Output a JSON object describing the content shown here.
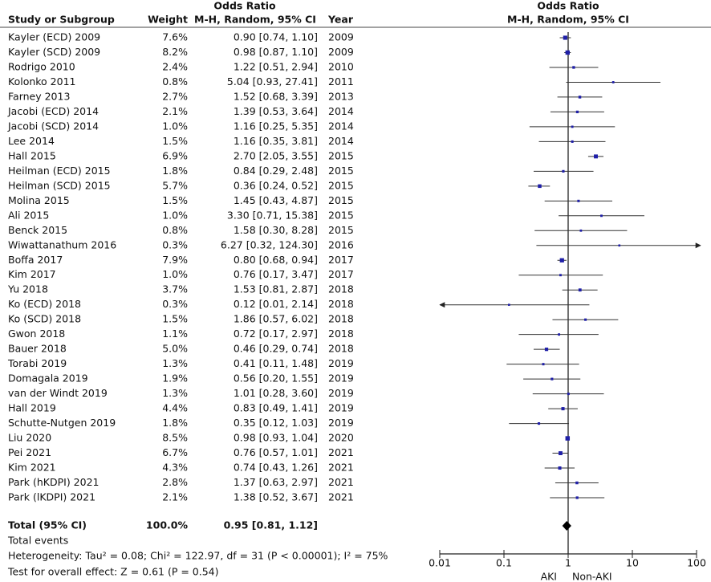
{
  "chart_data": {
    "type": "forest",
    "group_header": "Odds Ratio",
    "columns": [
      "Study or Subgroup",
      "Weight",
      "M-H, Random, 95% CI",
      "Year"
    ],
    "plot_header": [
      "Odds Ratio",
      "M-H, Random, 95% CI"
    ],
    "categories": [
      "Kayler (ECD) 2009",
      "Kayler (SCD) 2009",
      "Rodrigo 2010",
      "Kolonko 2011",
      "Farney 2013",
      "Jacobi (ECD) 2014",
      "Jacobi (SCD) 2014",
      "Lee 2014",
      "Hall 2015",
      "Heilman (ECD) 2015",
      "Heilman (SCD) 2015",
      "Molina 2015",
      "Ali 2015",
      "Benck 2015",
      "Wiwattanathum 2016",
      "Boffa 2017",
      "Kim 2017",
      "Yu 2018",
      "Ko (ECD) 2018",
      "Ko (SCD) 2018",
      "Gwon 2018",
      "Bauer 2018",
      "Torabi 2019",
      "Domagala 2019",
      "van der Windt 2019",
      "Hall 2019",
      "Schutte-Nutgen 2019",
      "Liu 2020",
      "Pei 2021",
      "Kim 2021",
      "Park (hKDPI) 2021",
      "Park (lKDPI) 2021"
    ],
    "years": [
      2009,
      2009,
      2010,
      2011,
      2013,
      2014,
      2014,
      2014,
      2015,
      2015,
      2015,
      2015,
      2015,
      2015,
      2016,
      2017,
      2017,
      2018,
      2018,
      2018,
      2018,
      2018,
      2019,
      2019,
      2019,
      2019,
      2019,
      2020,
      2021,
      2021,
      2021,
      2021
    ],
    "weights": [
      7.6,
      8.2,
      2.4,
      0.8,
      2.7,
      2.1,
      1.0,
      1.5,
      6.9,
      1.8,
      5.7,
      1.5,
      1.0,
      0.8,
      0.3,
      7.9,
      1.0,
      3.7,
      0.3,
      1.5,
      1.1,
      5.0,
      1.3,
      1.9,
      1.3,
      4.4,
      1.8,
      8.5,
      6.7,
      4.3,
      2.8,
      2.1
    ],
    "weight_labels": [
      "7.6%",
      "8.2%",
      "2.4%",
      "0.8%",
      "2.7%",
      "2.1%",
      "1.0%",
      "1.5%",
      "6.9%",
      "1.8%",
      "5.7%",
      "1.5%",
      "1.0%",
      "0.8%",
      "0.3%",
      "7.9%",
      "1.0%",
      "3.7%",
      "0.3%",
      "1.5%",
      "1.1%",
      "5.0%",
      "1.3%",
      "1.9%",
      "1.3%",
      "4.4%",
      "1.8%",
      "8.5%",
      "6.7%",
      "4.3%",
      "2.8%",
      "2.1%"
    ],
    "values": [
      0.9,
      0.98,
      1.22,
      5.04,
      1.52,
      1.39,
      1.16,
      1.16,
      2.7,
      0.84,
      0.36,
      1.45,
      3.3,
      1.58,
      6.27,
      0.8,
      0.76,
      1.53,
      0.12,
      1.86,
      0.72,
      0.46,
      0.41,
      0.56,
      1.01,
      0.83,
      0.35,
      0.98,
      0.76,
      0.74,
      1.37,
      1.38
    ],
    "ci_low": [
      0.74,
      0.87,
      0.51,
      0.93,
      0.68,
      0.53,
      0.25,
      0.35,
      2.05,
      0.29,
      0.24,
      0.43,
      0.71,
      0.3,
      0.32,
      0.68,
      0.17,
      0.81,
      0.01,
      0.57,
      0.17,
      0.29,
      0.11,
      0.2,
      0.28,
      0.49,
      0.12,
      0.93,
      0.57,
      0.43,
      0.63,
      0.52
    ],
    "ci_high": [
      1.1,
      1.1,
      2.94,
      27.41,
      3.39,
      3.64,
      5.35,
      3.81,
      3.55,
      2.48,
      0.52,
      4.87,
      15.38,
      8.28,
      124.3,
      0.94,
      3.47,
      2.87,
      2.14,
      6.02,
      2.97,
      0.74,
      1.48,
      1.55,
      3.6,
      1.41,
      1.03,
      1.04,
      1.01,
      1.26,
      2.97,
      3.67
    ],
    "value_labels": [
      "0.90 [0.74, 1.10]",
      "0.98 [0.87, 1.10]",
      "1.22 [0.51, 2.94]",
      "5.04 [0.93, 27.41]",
      "1.52 [0.68, 3.39]",
      "1.39 [0.53, 3.64]",
      "1.16 [0.25, 5.35]",
      "1.16 [0.35, 3.81]",
      "2.70 [2.05, 3.55]",
      "0.84 [0.29, 2.48]",
      "0.36 [0.24, 0.52]",
      "1.45 [0.43, 4.87]",
      "3.30 [0.71, 15.38]",
      "1.58 [0.30, 8.28]",
      "6.27 [0.32, 124.30]",
      "0.80 [0.68, 0.94]",
      "0.76 [0.17, 3.47]",
      "1.53 [0.81, 2.87]",
      "0.12 [0.01, 2.14]",
      "1.86 [0.57, 6.02]",
      "0.72 [0.17, 2.97]",
      "0.46 [0.29, 0.74]",
      "0.41 [0.11, 1.48]",
      "0.56 [0.20, 1.55]",
      "1.01 [0.28, 3.60]",
      "0.83 [0.49, 1.41]",
      "0.35 [0.12, 1.03]",
      "0.98 [0.93, 1.04]",
      "0.76 [0.57, 1.01]",
      "0.74 [0.43, 1.26]",
      "1.37 [0.63, 2.97]",
      "1.38 [0.52, 3.67]"
    ],
    "total": {
      "label": "Total (95% CI)",
      "weight": 100.0,
      "weight_label": "100.0%",
      "value": 0.95,
      "ci_low": 0.81,
      "ci_high": 1.12,
      "value_label": "0.95 [0.81, 1.12]"
    },
    "footnotes": [
      "Total events",
      "Heterogeneity: Tau² = 0.08; Chi² = 122.97, df = 31 (P < 0.00001); I² = 75%",
      "Test for overall effect: Z = 0.61 (P = 0.54)"
    ],
    "x_labels": [
      "AKI",
      "Non-AKI"
    ],
    "xscale": "log",
    "xlim": [
      0.01,
      100
    ],
    "xticks": [
      0.01,
      0.1,
      1,
      10,
      100
    ],
    "color": "#1f1fa8"
  }
}
